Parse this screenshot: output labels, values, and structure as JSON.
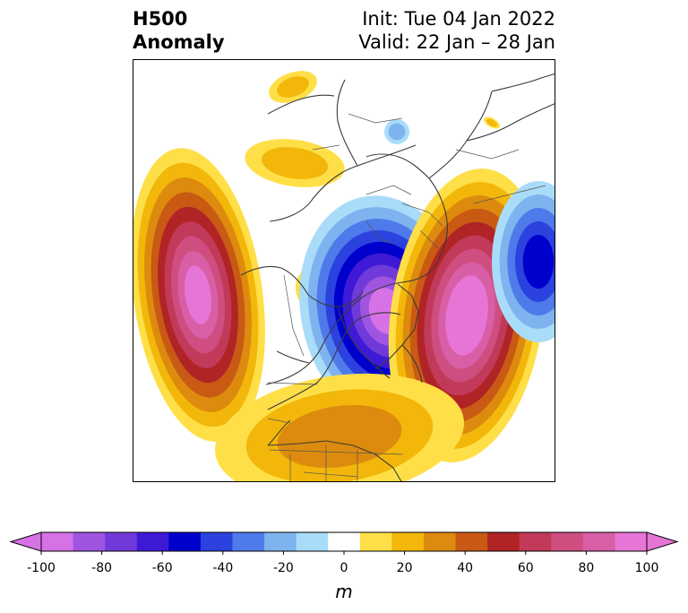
{
  "title": {
    "line1_left": "H500",
    "line2_left": "Anomaly",
    "line1_right": "Init: Tue 04 Jan 2022",
    "line2_right": "Valid: 22 Jan – 28 Jan"
  },
  "colorbar": {
    "unit": "m",
    "extend": "both",
    "range": [
      -100,
      100
    ],
    "ticks": [
      "-100",
      "-80",
      "-60",
      "-40",
      "-20",
      "0",
      "20",
      "40",
      "60",
      "80",
      "100"
    ],
    "levels": [
      -100,
      -90,
      -80,
      -70,
      -60,
      -50,
      -40,
      -30,
      -20,
      -10,
      10,
      20,
      30,
      40,
      50,
      60,
      70,
      80,
      90,
      100
    ],
    "colors": [
      "#d672e6",
      "#9f55e0",
      "#6f3ad9",
      "#3f1ad6",
      "#0000cc",
      "#2b42de",
      "#4f7aea",
      "#7eb3f0",
      "#a9dcf8",
      "#ffffff",
      "#ffdf47",
      "#f2b70a",
      "#dd8b0e",
      "#c95a14",
      "#b02426",
      "#c13a5a",
      "#cf4e80",
      "#d85fa6",
      "#e675d6"
    ],
    "under_color": "#d672e6",
    "over_color": "#e675d6"
  },
  "map": {
    "projection": "north polar stereographic",
    "field": "500 hPa geopotential height anomaly",
    "features": [
      {
        "region": "North Pacific (Gulf of Alaska)",
        "sign": "positive",
        "peak": 90
      },
      {
        "region": "Alaska / Bering",
        "sign": "positive",
        "peak": 40
      },
      {
        "region": "Arctic / Greenland / Canadian Arctic",
        "sign": "negative",
        "peak": -90
      },
      {
        "region": "Northeast Atlantic / Scandinavia / Western Europe",
        "sign": "positive",
        "peak": 100
      },
      {
        "region": "Contiguous United States",
        "sign": "positive",
        "peak": 30
      },
      {
        "region": "Central Asia",
        "sign": "positive",
        "peak": 20
      },
      {
        "region": "Western Russia / Eastern Europe",
        "sign": "negative",
        "peak": -50
      }
    ]
  }
}
